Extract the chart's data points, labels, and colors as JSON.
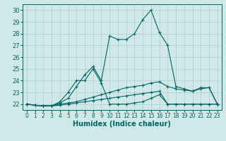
{
  "xlabel": "Humidex (Indice chaleur)",
  "background_color": "#d0e8e8",
  "grid_color": "#b0cccc",
  "line_color": "#006666",
  "xlim": [
    -0.5,
    23.5
  ],
  "ylim": [
    21.5,
    30.5
  ],
  "yticks": [
    22,
    23,
    24,
    25,
    26,
    27,
    28,
    29,
    30
  ],
  "xticks": [
    0,
    1,
    2,
    3,
    4,
    5,
    6,
    7,
    8,
    9,
    10,
    11,
    12,
    13,
    14,
    15,
    16,
    17,
    18,
    19,
    20,
    21,
    22,
    23
  ],
  "series1_x": [
    0,
    1,
    2,
    3,
    4,
    5,
    6,
    7,
    8,
    9,
    10,
    11,
    12,
    13,
    14,
    15,
    16,
    17,
    18,
    19,
    20,
    21,
    22,
    23
  ],
  "series1_y": [
    22.0,
    21.9,
    21.85,
    21.85,
    21.9,
    22.0,
    22.1,
    22.2,
    22.3,
    22.4,
    22.5,
    22.6,
    22.7,
    22.8,
    22.9,
    23.0,
    23.1,
    22.0,
    22.0,
    22.0,
    22.0,
    22.0,
    22.0,
    22.0
  ],
  "series2_x": [
    0,
    1,
    2,
    3,
    4,
    5,
    6,
    7,
    8,
    9,
    10,
    11,
    12,
    13,
    14,
    15,
    16,
    17,
    18,
    19,
    20,
    21,
    22,
    23
  ],
  "series2_y": [
    22.0,
    21.9,
    21.85,
    21.85,
    22.0,
    22.1,
    22.2,
    22.4,
    22.6,
    22.8,
    23.0,
    23.2,
    23.4,
    23.5,
    23.6,
    23.8,
    23.9,
    23.5,
    23.3,
    23.2,
    23.1,
    23.3,
    23.4,
    22.0
  ],
  "series3_x": [
    0,
    1,
    2,
    3,
    4,
    5,
    6,
    7,
    8,
    9,
    10,
    11,
    12,
    13,
    14,
    15,
    16,
    17,
    18,
    19,
    20,
    21,
    22,
    23
  ],
  "series3_y": [
    22.0,
    21.9,
    21.85,
    21.85,
    22.1,
    22.5,
    23.5,
    24.5,
    25.2,
    24.0,
    27.8,
    27.5,
    27.5,
    28.0,
    29.2,
    30.0,
    28.1,
    27.0,
    23.5,
    23.3,
    23.1,
    23.4,
    23.4,
    22.0
  ],
  "series4_x": [
    0,
    1,
    2,
    3,
    4,
    5,
    6,
    7,
    8,
    9,
    10,
    11,
    12,
    13,
    14,
    15,
    16,
    17,
    18,
    19,
    20,
    21,
    22,
    23
  ],
  "series4_y": [
    22.0,
    21.9,
    21.85,
    21.85,
    22.2,
    23.0,
    24.0,
    24.0,
    25.0,
    23.8,
    22.0,
    22.0,
    22.0,
    22.1,
    22.2,
    22.5,
    22.8,
    22.0,
    22.0,
    22.0,
    22.0,
    22.0,
    22.0,
    22.0
  ]
}
